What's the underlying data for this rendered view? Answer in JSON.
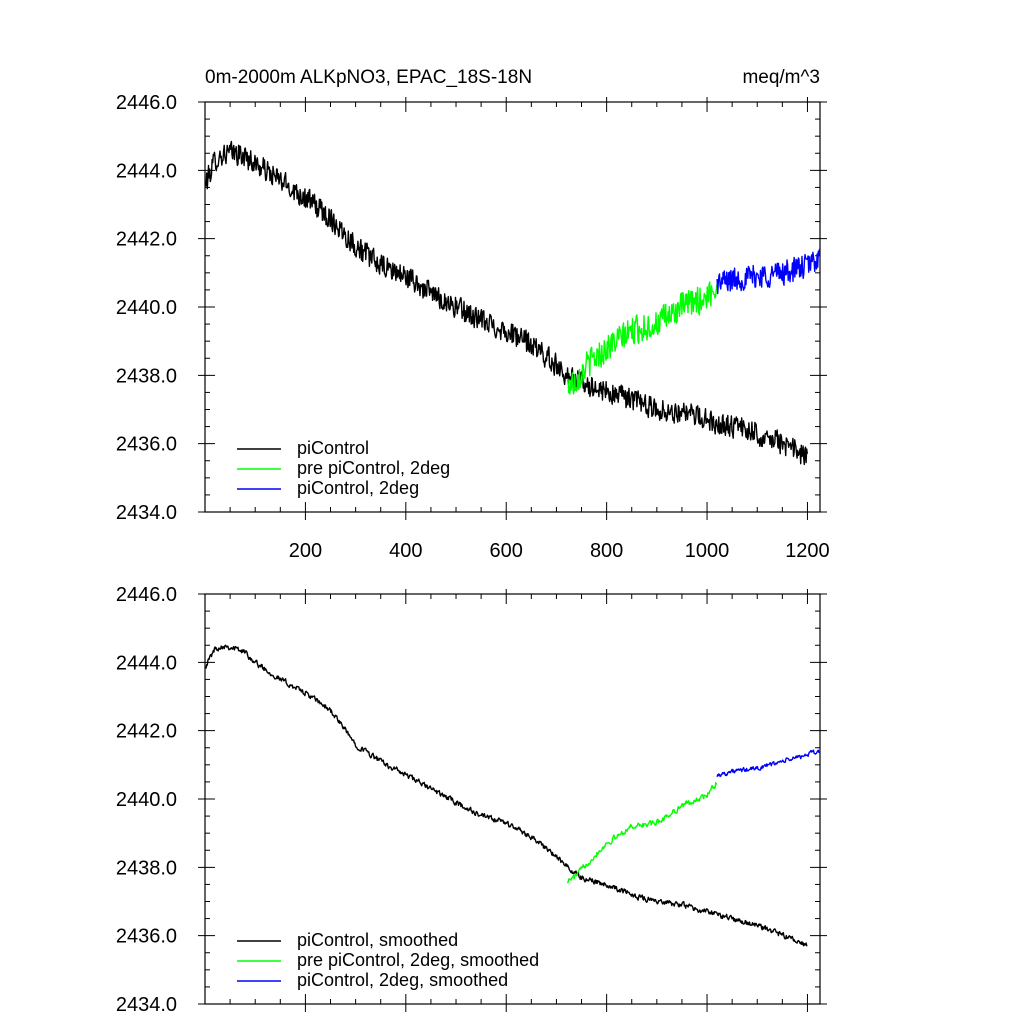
{
  "chart_data": [
    {
      "type": "line",
      "title_left": "0m-2000m ALKpNO3, EPAC_18S-18N",
      "title_right": "meq/m^3",
      "xlim": [
        0,
        1225
      ],
      "ylim": [
        2434.0,
        2446.0
      ],
      "x_ticks": [
        200,
        400,
        600,
        800,
        1000,
        1200
      ],
      "x_tick_labels": [
        "200",
        "400",
        "600",
        "800",
        "1000",
        "1200"
      ],
      "y_ticks": [
        2434.0,
        2436.0,
        2438.0,
        2440.0,
        2442.0,
        2444.0,
        2446.0
      ],
      "y_tick_labels": [
        "2434.0",
        "2436.0",
        "2438.0",
        "2440.0",
        "2442.0",
        "2444.0",
        "2446.0"
      ],
      "noise": 0.32,
      "series": [
        {
          "name": "piControl",
          "color": "#000000",
          "x": [
            1,
            20,
            40,
            60,
            80,
            100,
            150,
            200,
            250,
            300,
            350,
            400,
            450,
            500,
            550,
            600,
            650,
            700,
            730,
            750,
            800,
            850,
            900,
            950,
            1000,
            1050,
            1100,
            1150,
            1200
          ],
          "y": [
            2443.6,
            2444.3,
            2444.5,
            2444.5,
            2444.4,
            2444.2,
            2443.7,
            2443.2,
            2442.6,
            2441.8,
            2441.2,
            2440.9,
            2440.4,
            2440.0,
            2439.6,
            2439.3,
            2438.9,
            2438.3,
            2437.9,
            2437.8,
            2437.5,
            2437.3,
            2437.0,
            2436.9,
            2436.7,
            2436.5,
            2436.3,
            2436.0,
            2435.6
          ]
        },
        {
          "name": "pre piControl, 2deg",
          "color": "#00ff00",
          "x": [
            722,
            735,
            760,
            800,
            850,
            900,
            950,
            1000,
            1020
          ],
          "y": [
            2437.7,
            2437.8,
            2438.3,
            2438.8,
            2439.3,
            2439.5,
            2440.0,
            2440.3,
            2440.6
          ],
          "noise": 0.4
        },
        {
          "name": "piControl, 2deg",
          "color": "#0000ff",
          "x": [
            1020,
            1050,
            1100,
            1150,
            1200,
            1225
          ],
          "y": [
            2440.7,
            2440.8,
            2440.9,
            2441.0,
            2441.2,
            2441.5
          ],
          "noise": 0.35
        }
      ],
      "legend": [
        "piControl",
        "pre piControl, 2deg",
        "piControl, 2deg"
      ],
      "legend_position": "bottom-left"
    },
    {
      "type": "line",
      "title_left": "",
      "title_right": "",
      "xlim": [
        0,
        1225
      ],
      "ylim": [
        2434.0,
        2446.0
      ],
      "x_ticks": [
        200,
        400,
        600,
        800,
        1000,
        1200
      ],
      "x_tick_labels": [],
      "y_ticks": [
        2434.0,
        2436.0,
        2438.0,
        2440.0,
        2442.0,
        2444.0,
        2446.0
      ],
      "y_tick_labels": [
        "2434.0",
        "2436.0",
        "2438.0",
        "2440.0",
        "2442.0",
        "2444.0",
        "2446.0"
      ],
      "noise": 0.1,
      "series": [
        {
          "name": "piControl, smoothed",
          "color": "#000000",
          "x": [
            1,
            20,
            40,
            60,
            80,
            100,
            150,
            200,
            250,
            300,
            350,
            400,
            450,
            500,
            550,
            600,
            650,
            700,
            730,
            750,
            800,
            850,
            900,
            950,
            1000,
            1050,
            1100,
            1150,
            1200
          ],
          "y": [
            2443.9,
            2444.4,
            2444.5,
            2444.4,
            2444.3,
            2444.0,
            2443.5,
            2443.1,
            2442.6,
            2441.6,
            2441.1,
            2440.7,
            2440.3,
            2439.9,
            2439.5,
            2439.3,
            2438.9,
            2438.3,
            2437.9,
            2437.7,
            2437.5,
            2437.2,
            2437.0,
            2436.9,
            2436.7,
            2436.5,
            2436.3,
            2436.0,
            2435.7
          ]
        },
        {
          "name": "pre piControl, 2deg, smoothed",
          "color": "#00ff00",
          "x": [
            722,
            735,
            760,
            800,
            850,
            900,
            950,
            1000,
            1020
          ],
          "y": [
            2437.6,
            2437.7,
            2438.1,
            2438.7,
            2439.2,
            2439.3,
            2439.8,
            2440.1,
            2440.5
          ],
          "noise": 0.1
        },
        {
          "name": "piControl, 2deg, smoothed",
          "color": "#0000ff",
          "x": [
            1020,
            1050,
            1100,
            1150,
            1200,
            1225
          ],
          "y": [
            2440.7,
            2440.8,
            2440.9,
            2441.1,
            2441.3,
            2441.4
          ],
          "noise": 0.08
        }
      ],
      "legend": [
        "piControl, smoothed",
        "pre piControl, 2deg, smoothed",
        "piControl, 2deg, smoothed"
      ],
      "legend_position": "bottom-left"
    }
  ]
}
